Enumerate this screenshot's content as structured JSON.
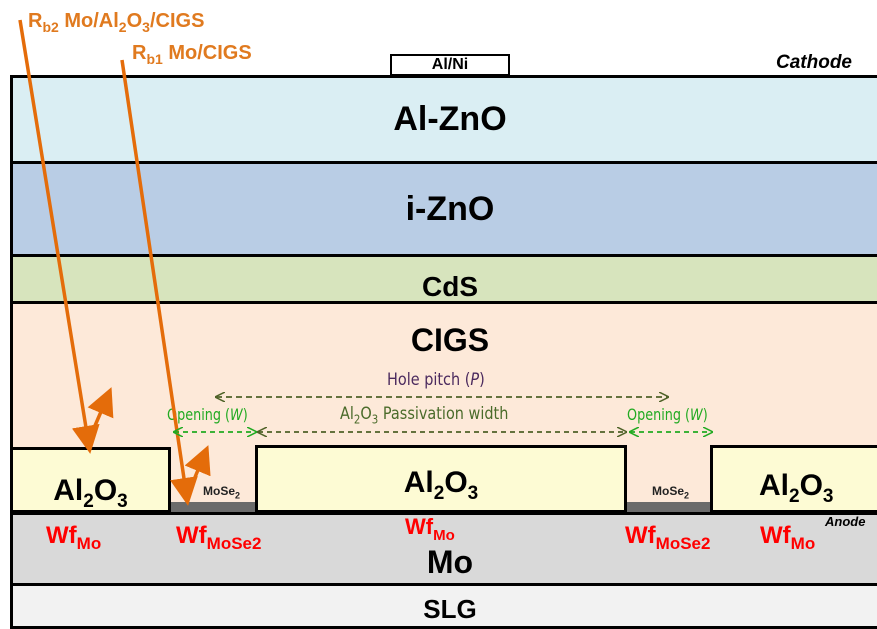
{
  "labels": {
    "cathode": "Cathode",
    "anode": "Anode",
    "contact": "Al/Ni",
    "alzno": "Al-ZnO",
    "izno": "i-ZnO",
    "cds": "CdS",
    "cigs": "CIGS",
    "mo": "Mo",
    "slg": "SLG",
    "al2o3_base": "Al",
    "al2o3_sub1": "2",
    "al2o3_mid": "O",
    "al2o3_sub2": "3",
    "mose2_base": "MoSe",
    "mose2_sub": "2",
    "wf_base": "Wf",
    "wf_mo_sub": "Mo",
    "wf_mose2_sub": "MoSe2",
    "rb2_r": "R",
    "rb2_sub": "b2",
    "rb2_text_a": " Mo/Al",
    "rb2_text_sub1": "2",
    "rb2_text_b": "O",
    "rb2_text_sub2": "3",
    "rb2_text_c": "/CIGS",
    "rb1_r": "R",
    "rb1_sub": "b1",
    "rb1_text": " Mo/CIGS",
    "hole_pitch": "Hole pitch (",
    "hole_pitch_var": "P",
    "hole_pitch_end": ")",
    "opening": "Opening (",
    "opening_var": "W",
    "opening_end": ")",
    "passivation_a": "Al",
    "passivation_sub1": "2",
    "passivation_b": "O",
    "passivation_sub2": "3",
    "passivation_c": " Passivation width"
  },
  "colors": {
    "alzno": "#daeef3",
    "izno": "#b9cde5",
    "cds": "#d7e4bd",
    "cigs": "#fde9d9",
    "al2o3": "#fdfbd4",
    "mo": "#d9d9d9",
    "slg": "#f2f2f2",
    "arrow_orange": "#e46c0a",
    "wf_red": "#ff0000",
    "green": "#22aa22",
    "olive": "#4f6228",
    "purple": "#4b2a5e"
  }
}
